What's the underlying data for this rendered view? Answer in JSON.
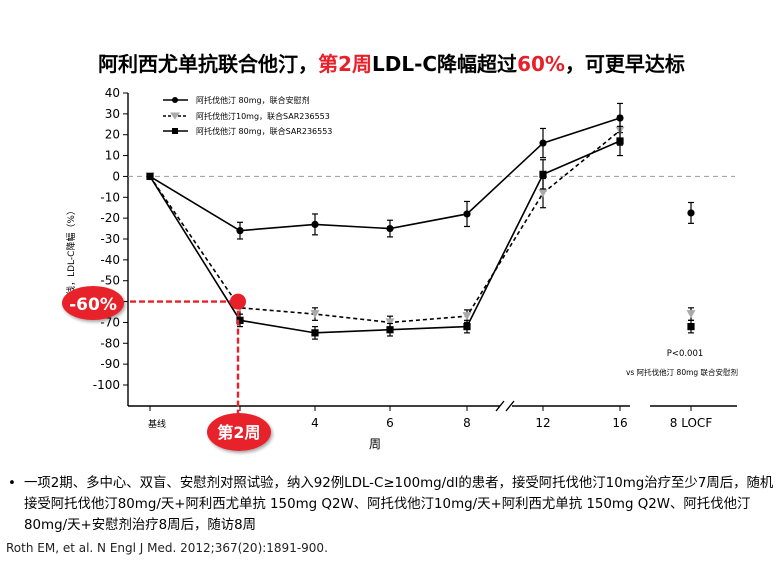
{
  "title": {
    "part1": "阿利西尤单抗联合他汀，",
    "part2": "第2周",
    "part3": "LDL-C降幅超过",
    "part4": "60%",
    "part5": "，可更早达标"
  },
  "chart_data": {
    "type": "line",
    "ylabel": "基线，LDL-C降幅（%）",
    "xlabel": "周",
    "ylim": [
      -100,
      40
    ],
    "yticks": [
      40,
      30,
      20,
      10,
      0,
      -10,
      -20,
      -30,
      -40,
      -50,
      -60,
      -70,
      -80,
      -90,
      -100
    ],
    "x_categories": [
      "基线",
      "2",
      "4",
      "6",
      "8",
      "12",
      "16",
      "8 LOCF"
    ],
    "xtick_labels": [
      "基线",
      "4",
      "6",
      "8",
      "12",
      "16",
      "8 LOCF"
    ],
    "series": [
      {
        "name": "阿托伐他汀 80mg，联合安慰剂",
        "marker": "circle",
        "line": "solid",
        "x": [
          "基线",
          "2",
          "4",
          "6",
          "8",
          "12",
          "16"
        ],
        "values": [
          0,
          -26,
          -23,
          -25,
          -18,
          16,
          28
        ],
        "err": [
          1,
          4,
          5,
          4,
          6,
          7,
          7
        ],
        "locf": -17.5,
        "locf_err": 5
      },
      {
        "name": "阿托伐他汀10mg，联合SAR236553",
        "marker": "triangle-down",
        "line": "dotted",
        "x": [
          "基线",
          "2",
          "4",
          "6",
          "8",
          "12",
          "16"
        ],
        "values": [
          0,
          -63,
          -66,
          -70,
          -67,
          -8,
          22
        ],
        "err": [
          1,
          3,
          3,
          3,
          3,
          7,
          7
        ],
        "locf": -66,
        "locf_err": 3
      },
      {
        "name": "阿托伐他汀 80mg，联合SAR236553",
        "marker": "square",
        "line": "solid",
        "x": [
          "基线",
          "2",
          "4",
          "6",
          "8",
          "12",
          "16"
        ],
        "values": [
          0,
          -69,
          -75,
          -73.5,
          -72,
          1,
          17
        ],
        "err": [
          1,
          3,
          3,
          3,
          3,
          7,
          7
        ],
        "locf": -72,
        "locf_err": 3
      }
    ],
    "annotations": {
      "callout_value": "-60%",
      "callout_week": "第2周",
      "pvalue": "P<0.001",
      "pvalue_note": "vs 阿托伐他汀 80mg 联合安慰剂"
    },
    "colors": {
      "accent_red": "#e8202a",
      "series": "#000000",
      "triangle_fill": "#aaaaaa",
      "zero_line": "#999999"
    }
  },
  "bullet_text": "一项2期、多中心、双盲、安慰剂对照试验，纳入92例LDL-C≥100mg/dl的患者，接受阿托伐他汀10mg治疗至少7周后，随机接受阿托伐他汀80mg/天+阿利西尤单抗 150mg Q2W、阿托伐他汀10mg/天+阿利西尤单抗 150mg Q2W、阿托伐他汀80mg/天+安慰剂治疗8周后，随访8周",
  "citation": "Roth EM, et al. N Engl J Med. 2012;367(20):1891-900."
}
